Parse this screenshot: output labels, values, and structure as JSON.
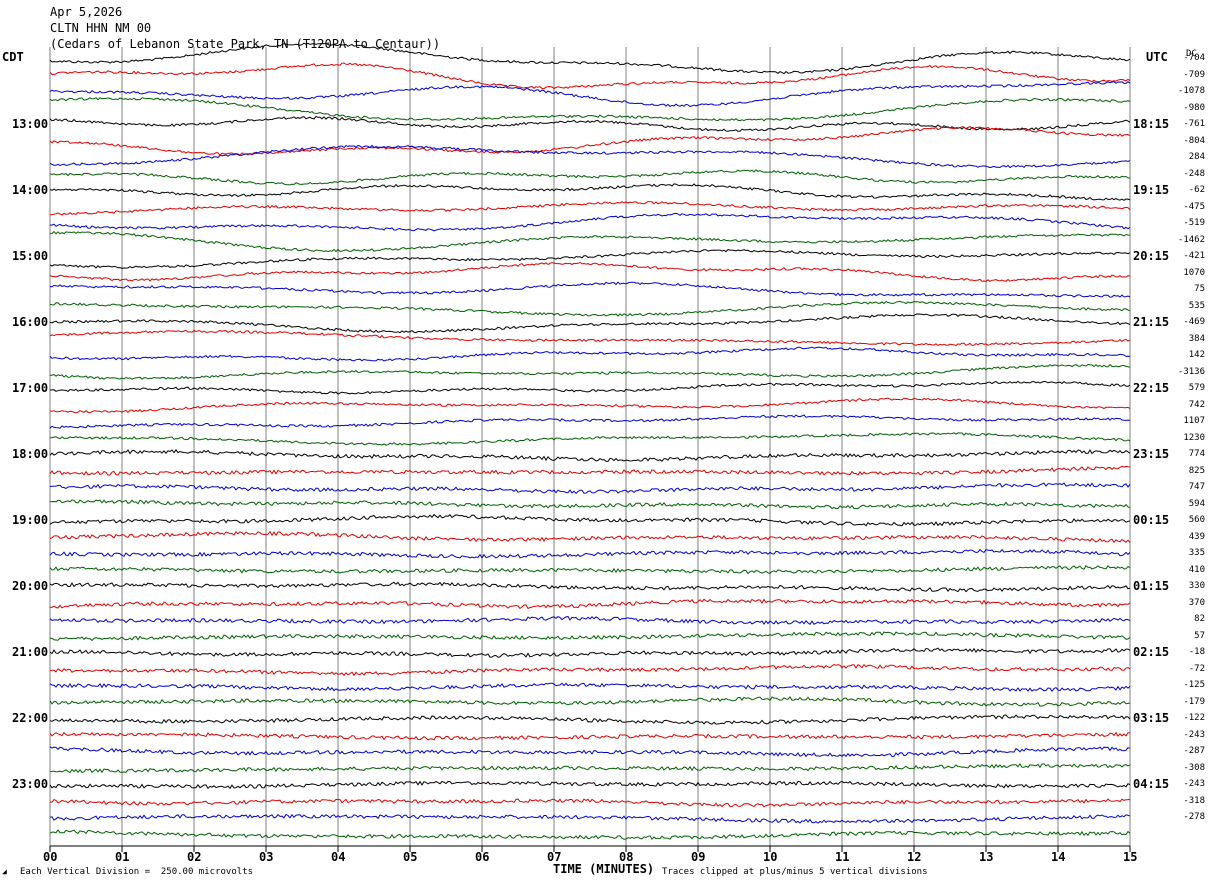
{
  "header": {
    "date": "Apr 5,2026",
    "station": "CLTN HHN NM 00",
    "location": "(Cedars of Lebanon State Park, TN (T120PA to Centaur))"
  },
  "axis": {
    "left_title": "CDT",
    "right_title": "UTC",
    "dc_title": "DC",
    "bottom_title": "TIME (MINUTES)"
  },
  "footer": {
    "mark": "◢",
    "division_note": "Each Vertical Division =  250.00 microvolts",
    "clip_note": "Traces clipped at plus/minus 5 vertical divisions"
  },
  "colors": {
    "black": "#000000",
    "red": "#e00000",
    "blue": "#0000d0",
    "green": "#006000",
    "grid": "#808080"
  },
  "chart_data": {
    "type": "line",
    "title": "CLTN HHN NM 00",
    "xlabel": "TIME (MINUTES)",
    "xlim": [
      0,
      15
    ],
    "x_ticks": [
      "00",
      "01",
      "02",
      "03",
      "04",
      "05",
      "06",
      "07",
      "08",
      "09",
      "10",
      "11",
      "12",
      "13",
      "14",
      "15"
    ],
    "trace_minutes": 15,
    "trace_count": 48,
    "trace_color_cycle": [
      "black",
      "red",
      "blue",
      "green"
    ],
    "left_time_labels": [
      "13:00",
      "14:00",
      "15:00",
      "16:00",
      "17:00",
      "18:00",
      "19:00",
      "20:00",
      "21:00",
      "22:00",
      "23:00"
    ],
    "right_time_labels": [
      "18:15",
      "19:15",
      "20:15",
      "21:15",
      "22:15",
      "23:15",
      "00:15",
      "01:15",
      "02:15",
      "03:15",
      "04:15"
    ],
    "dc_offsets": [
      "-704",
      "-709",
      "-1078",
      "-980",
      "-761",
      "-804",
      "284",
      "-248",
      "-62",
      "-475",
      "-519",
      "-1462",
      "-421",
      "1070",
      "75",
      "535",
      "-469",
      "384",
      "142",
      "-3136",
      "579",
      "742",
      "1107",
      "1230",
      "774",
      "825",
      "747",
      "594",
      "560",
      "439",
      "335",
      "410",
      "330",
      "370",
      "82",
      "57",
      "-18",
      "-72",
      "-125",
      "-179",
      "-122",
      "-243",
      "-287",
      "-308",
      "-243",
      "-318",
      "-278"
    ],
    "vertical_division_microvolts": 250.0,
    "clip_divisions": 5
  }
}
